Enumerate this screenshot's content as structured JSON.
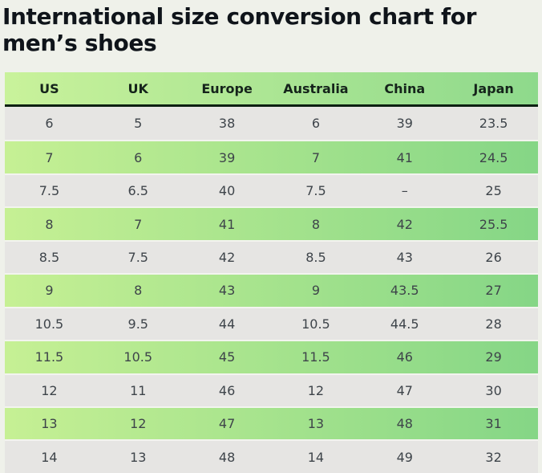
{
  "page": {
    "title_line1": "International size conversion chart for",
    "title_line2": "men’s shoes"
  },
  "colors": {
    "page_background": "#eff1ea",
    "title_text": "#0f141a",
    "header_gradient_left": "#c9f29b",
    "header_gradient_right": "#8ed98c",
    "header_text": "#15241b",
    "header_bottom_border": "#0d2012",
    "row_gray": "#e6e5e3",
    "row_green_gradient_left": "#c6f094",
    "row_green_gradient_right": "#85d686",
    "cell_text": "#3e444a"
  },
  "table": {
    "columns": [
      "US",
      "UK",
      "Europe",
      "Australia",
      "China",
      "Japan"
    ],
    "rows": [
      [
        "6",
        "5",
        "38",
        "6",
        "39",
        "23.5"
      ],
      [
        "7",
        "6",
        "39",
        "7",
        "41",
        "24.5"
      ],
      [
        "7.5",
        "6.5",
        "40",
        "7.5",
        "–",
        "25"
      ],
      [
        "8",
        "7",
        "41",
        "8",
        "42",
        "25.5"
      ],
      [
        "8.5",
        "7.5",
        "42",
        "8.5",
        "43",
        "26"
      ],
      [
        "9",
        "8",
        "43",
        "9",
        "43.5",
        "27"
      ],
      [
        "10.5",
        "9.5",
        "44",
        "10.5",
        "44.5",
        "28"
      ],
      [
        "11.5",
        "10.5",
        "45",
        "11.5",
        "46",
        "29"
      ],
      [
        "12",
        "11",
        "46",
        "12",
        "47",
        "30"
      ],
      [
        "13",
        "12",
        "47",
        "13",
        "48",
        "31"
      ],
      [
        "14",
        "13",
        "48",
        "14",
        "49",
        "32"
      ]
    ]
  }
}
